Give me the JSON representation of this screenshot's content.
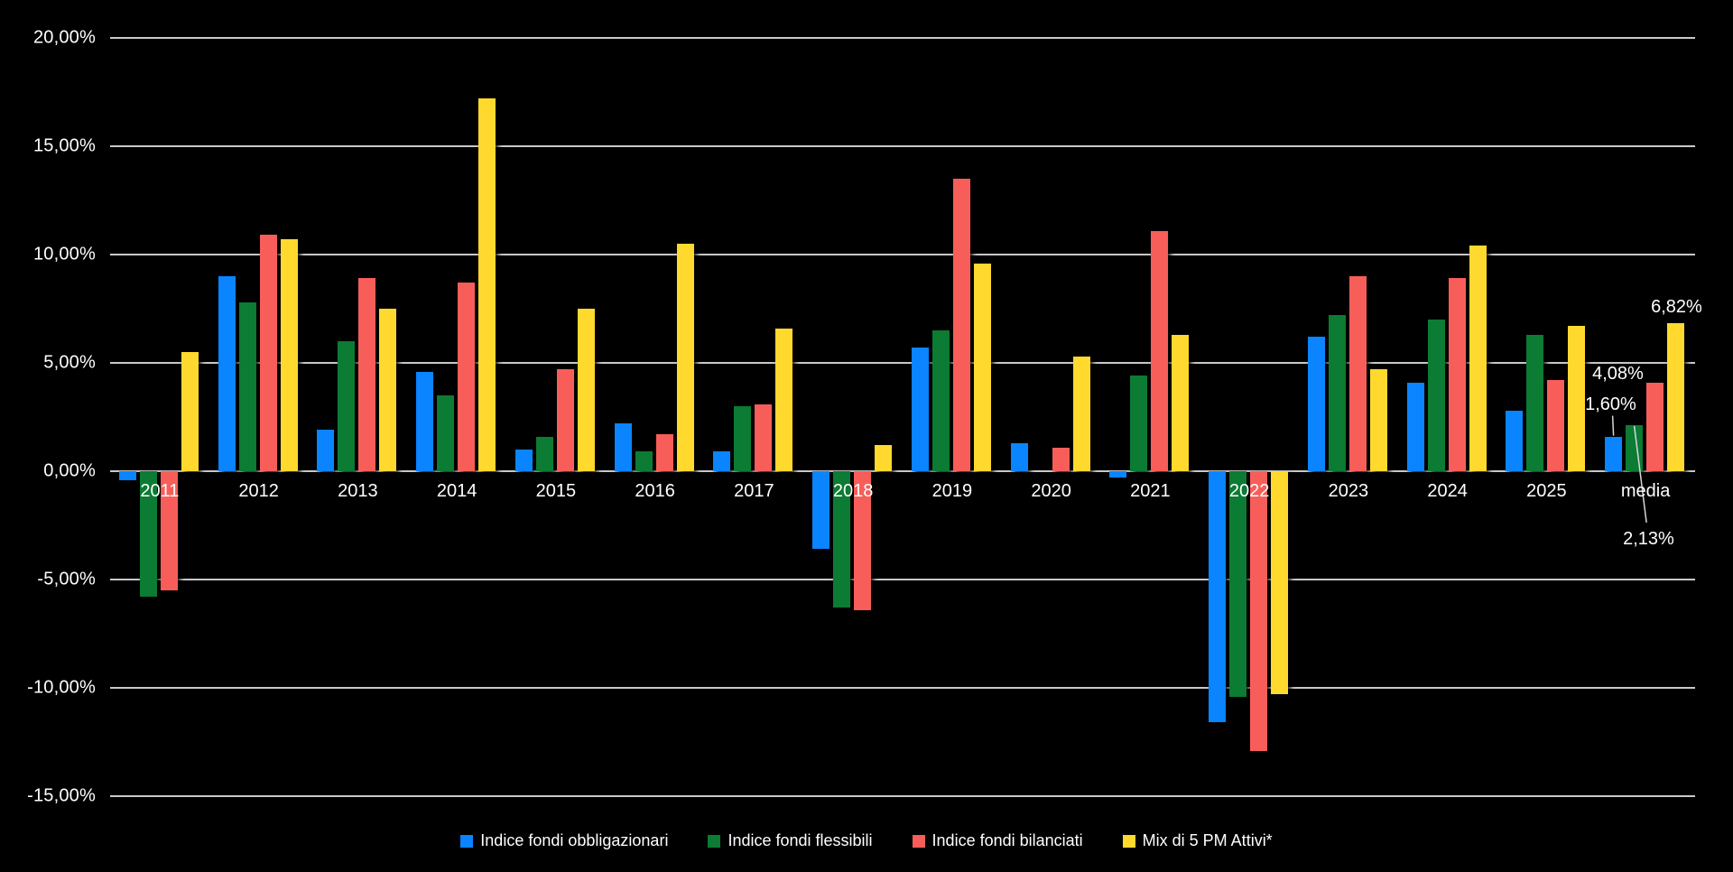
{
  "chart_data": {
    "type": "bar",
    "title": "",
    "xlabel": "",
    "ylabel": "",
    "grid": true,
    "background": "#000000",
    "text_color": "#ffffff",
    "gridline_color": "#c9c9c9",
    "legend_position": "bottom",
    "ylim": [
      -15,
      20
    ],
    "categories": [
      "2011",
      "2012",
      "2013",
      "2014",
      "2015",
      "2016",
      "2017",
      "2018",
      "2019",
      "2020",
      "2021",
      "2022",
      "2023",
      "2024",
      "2025",
      "media"
    ],
    "y_ticks": [
      {
        "label": "20,00%",
        "value": 20
      },
      {
        "label": "15,00%",
        "value": 15
      },
      {
        "label": "10,00%",
        "value": 10
      },
      {
        "label": "5,00%",
        "value": 5
      },
      {
        "label": "0,00%",
        "value": 0
      },
      {
        "label": "-5,00%",
        "value": -5
      },
      {
        "label": "-10,00%",
        "value": -10
      },
      {
        "label": "-15,00%",
        "value": -15
      }
    ],
    "series": [
      {
        "name": "Indice fondi obbligazionari",
        "color": "#0a84ff",
        "values": [
          -0.4,
          9.0,
          1.9,
          4.6,
          1.0,
          2.2,
          0.9,
          -3.6,
          5.7,
          1.3,
          -0.3,
          -11.6,
          6.2,
          4.1,
          2.8,
          1.6
        ]
      },
      {
        "name": "Indice fondi flessibili",
        "color": "#0c7b33",
        "values": [
          -5.8,
          7.8,
          6.0,
          3.5,
          1.6,
          0.9,
          3.0,
          -6.3,
          6.5,
          0.0,
          4.4,
          -10.4,
          7.2,
          7.0,
          6.3,
          2.13
        ]
      },
      {
        "name": "Indice fondi bilanciati",
        "color": "#f85e59",
        "values": [
          -5.5,
          10.9,
          8.9,
          8.7,
          4.7,
          1.7,
          3.1,
          -6.4,
          13.5,
          1.1,
          11.1,
          -12.9,
          9.0,
          8.9,
          4.2,
          4.08
        ]
      },
      {
        "name": "Mix di 5 PM Attivi*",
        "color": "#ffd92e",
        "values": [
          5.5,
          10.7,
          7.5,
          17.2,
          7.5,
          10.5,
          6.6,
          1.2,
          9.6,
          5.3,
          6.3,
          -10.3,
          4.7,
          10.4,
          6.7,
          6.82
        ]
      }
    ],
    "annotations": [
      {
        "text": "1,60%",
        "category": "media",
        "series_index": 0
      },
      {
        "text": "2,13%",
        "category": "media",
        "series_index": 1
      },
      {
        "text": "4,08%",
        "category": "media",
        "series_index": 2
      },
      {
        "text": "6,82%",
        "category": "media",
        "series_index": 3
      }
    ]
  }
}
